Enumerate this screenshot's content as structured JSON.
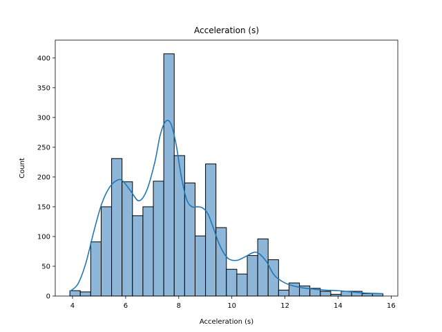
{
  "chart_data": {
    "type": "bar",
    "title": "Acceleration (s)",
    "xlabel": "Acceleration (s)",
    "ylabel": "Count",
    "xlim": [
      3.35,
      16.25
    ],
    "ylim": [
      0,
      430
    ],
    "xticks": [
      4,
      6,
      8,
      10,
      12,
      14,
      16
    ],
    "yticks": [
      0,
      50,
      100,
      150,
      200,
      250,
      300,
      350,
      400
    ],
    "bin_start": 3.9,
    "bin_width": 0.393,
    "values": [
      9,
      7,
      91,
      150,
      231,
      192,
      135,
      150,
      193,
      407,
      236,
      190,
      101,
      222,
      115,
      45,
      37,
      68,
      96,
      61,
      10,
      22,
      17,
      13,
      8,
      3,
      8,
      8,
      4,
      4
    ],
    "kde": {
      "x": [
        3.9,
        4.2,
        4.5,
        4.8,
        5.1,
        5.4,
        5.7,
        5.9,
        6.2,
        6.5,
        6.8,
        7.1,
        7.3,
        7.5,
        7.7,
        7.9,
        8.1,
        8.3,
        8.5,
        8.7,
        8.9,
        9.1,
        9.3,
        9.5,
        9.7,
        9.9,
        10.2,
        10.5,
        10.8,
        11.0,
        11.3,
        11.6,
        12.0,
        12.5,
        13.0,
        13.5,
        14.0,
        14.5,
        15.0,
        15.7
      ],
      "y": [
        8,
        20,
        55,
        108,
        155,
        183,
        195,
        193,
        176,
        160,
        178,
        225,
        270,
        293,
        290,
        255,
        200,
        162,
        150,
        150,
        148,
        138,
        115,
        90,
        72,
        62,
        60,
        66,
        73,
        72,
        58,
        35,
        22,
        15,
        12,
        10,
        9,
        7,
        5,
        4
      ]
    },
    "colors": {
      "bar_fill": "#8db6d8",
      "bar_edge": "#000000",
      "kde_line": "#1f77b4"
    },
    "grid": false,
    "legend": "none"
  }
}
